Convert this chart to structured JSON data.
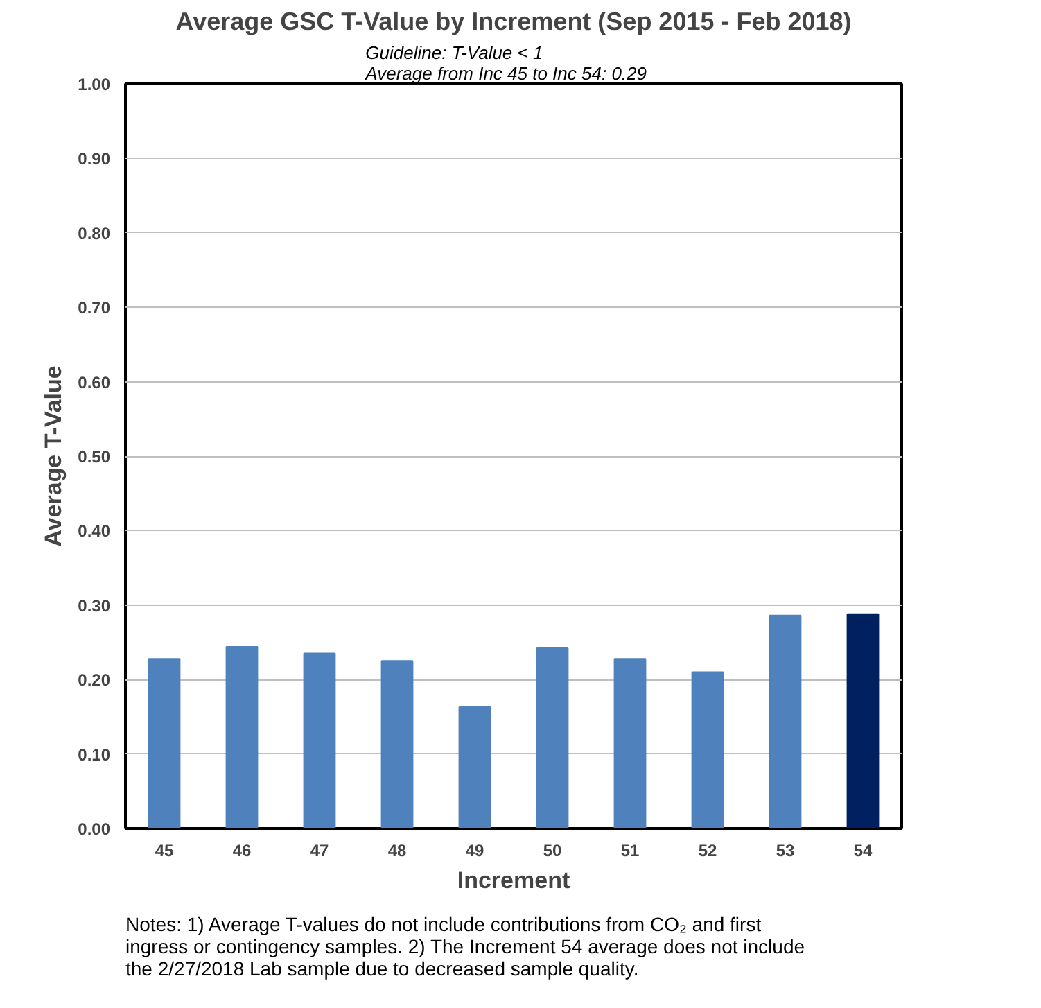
{
  "chart_data": {
    "type": "bar",
    "title": "Average GSC T-Value by Increment (Sep 2015 - Feb 2018)",
    "subtitle": "Guideline: T-Value < 1\nAverage from Inc 45 to Inc 54:    0.29",
    "xlabel": "Increment",
    "ylabel": "Average T-Value",
    "categories": [
      "45",
      "46",
      "47",
      "48",
      "49",
      "50",
      "51",
      "52",
      "53",
      "54"
    ],
    "values": [
      0.228,
      0.244,
      0.235,
      0.225,
      0.163,
      0.243,
      0.228,
      0.21,
      0.286,
      0.288
    ],
    "colors": [
      "#4f81bd",
      "#4f81bd",
      "#4f81bd",
      "#4f81bd",
      "#4f81bd",
      "#4f81bd",
      "#4f81bd",
      "#4f81bd",
      "#4f81bd",
      "#002060"
    ],
    "ylim": [
      0,
      1
    ],
    "yticks": [
      {
        "value": 0,
        "label": "0.00"
      },
      {
        "value": 0.1,
        "label": "0.10"
      },
      {
        "value": 0.2,
        "label": "0.20"
      },
      {
        "value": 0.3,
        "label": "0.30"
      },
      {
        "value": 0.4,
        "label": "0.40"
      },
      {
        "value": 0.5,
        "label": "0.50"
      },
      {
        "value": 0.6,
        "label": "0.60"
      },
      {
        "value": 0.7,
        "label": "0.70"
      },
      {
        "value": 0.8,
        "label": "0.80"
      },
      {
        "value": 0.9,
        "label": "0.90"
      },
      {
        "value": 1,
        "label": "1.00"
      }
    ],
    "grid": "y",
    "annotations": [
      "Notes:  1) Average T-values do not include contributions from CO₂ and first ingress or contingency samples. 2) The Increment 54 average does not include the 2/27/2018 Lab sample due to decreased sample quality."
    ]
  }
}
